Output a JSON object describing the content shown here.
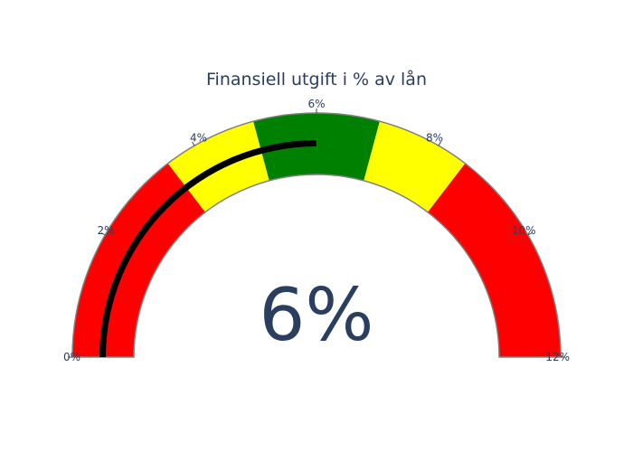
{
  "chart_data": {
    "type": "gauge",
    "title": "Finansiell utgift i % av lån",
    "value": 6,
    "value_label": "6%",
    "range": [
      0,
      12
    ],
    "ticks": [
      {
        "value": 0,
        "label": "0%"
      },
      {
        "value": 2,
        "label": "2%"
      },
      {
        "value": 4,
        "label": "4%"
      },
      {
        "value": 6,
        "label": "6%"
      },
      {
        "value": 8,
        "label": "8%"
      },
      {
        "value": 10,
        "label": "10%"
      },
      {
        "value": 12,
        "label": "12%"
      }
    ],
    "steps": [
      {
        "range": [
          0,
          3.5
        ],
        "color": "#ff0000"
      },
      {
        "range": [
          3.5,
          5
        ],
        "color": "#ffff00"
      },
      {
        "range": [
          5,
          7
        ],
        "color": "#008000"
      },
      {
        "range": [
          7,
          8.5
        ],
        "color": "#ffff00"
      },
      {
        "range": [
          8.5,
          12
        ],
        "color": "#ff0000"
      }
    ],
    "bar_color": "#000000",
    "border_color": "#808080"
  }
}
